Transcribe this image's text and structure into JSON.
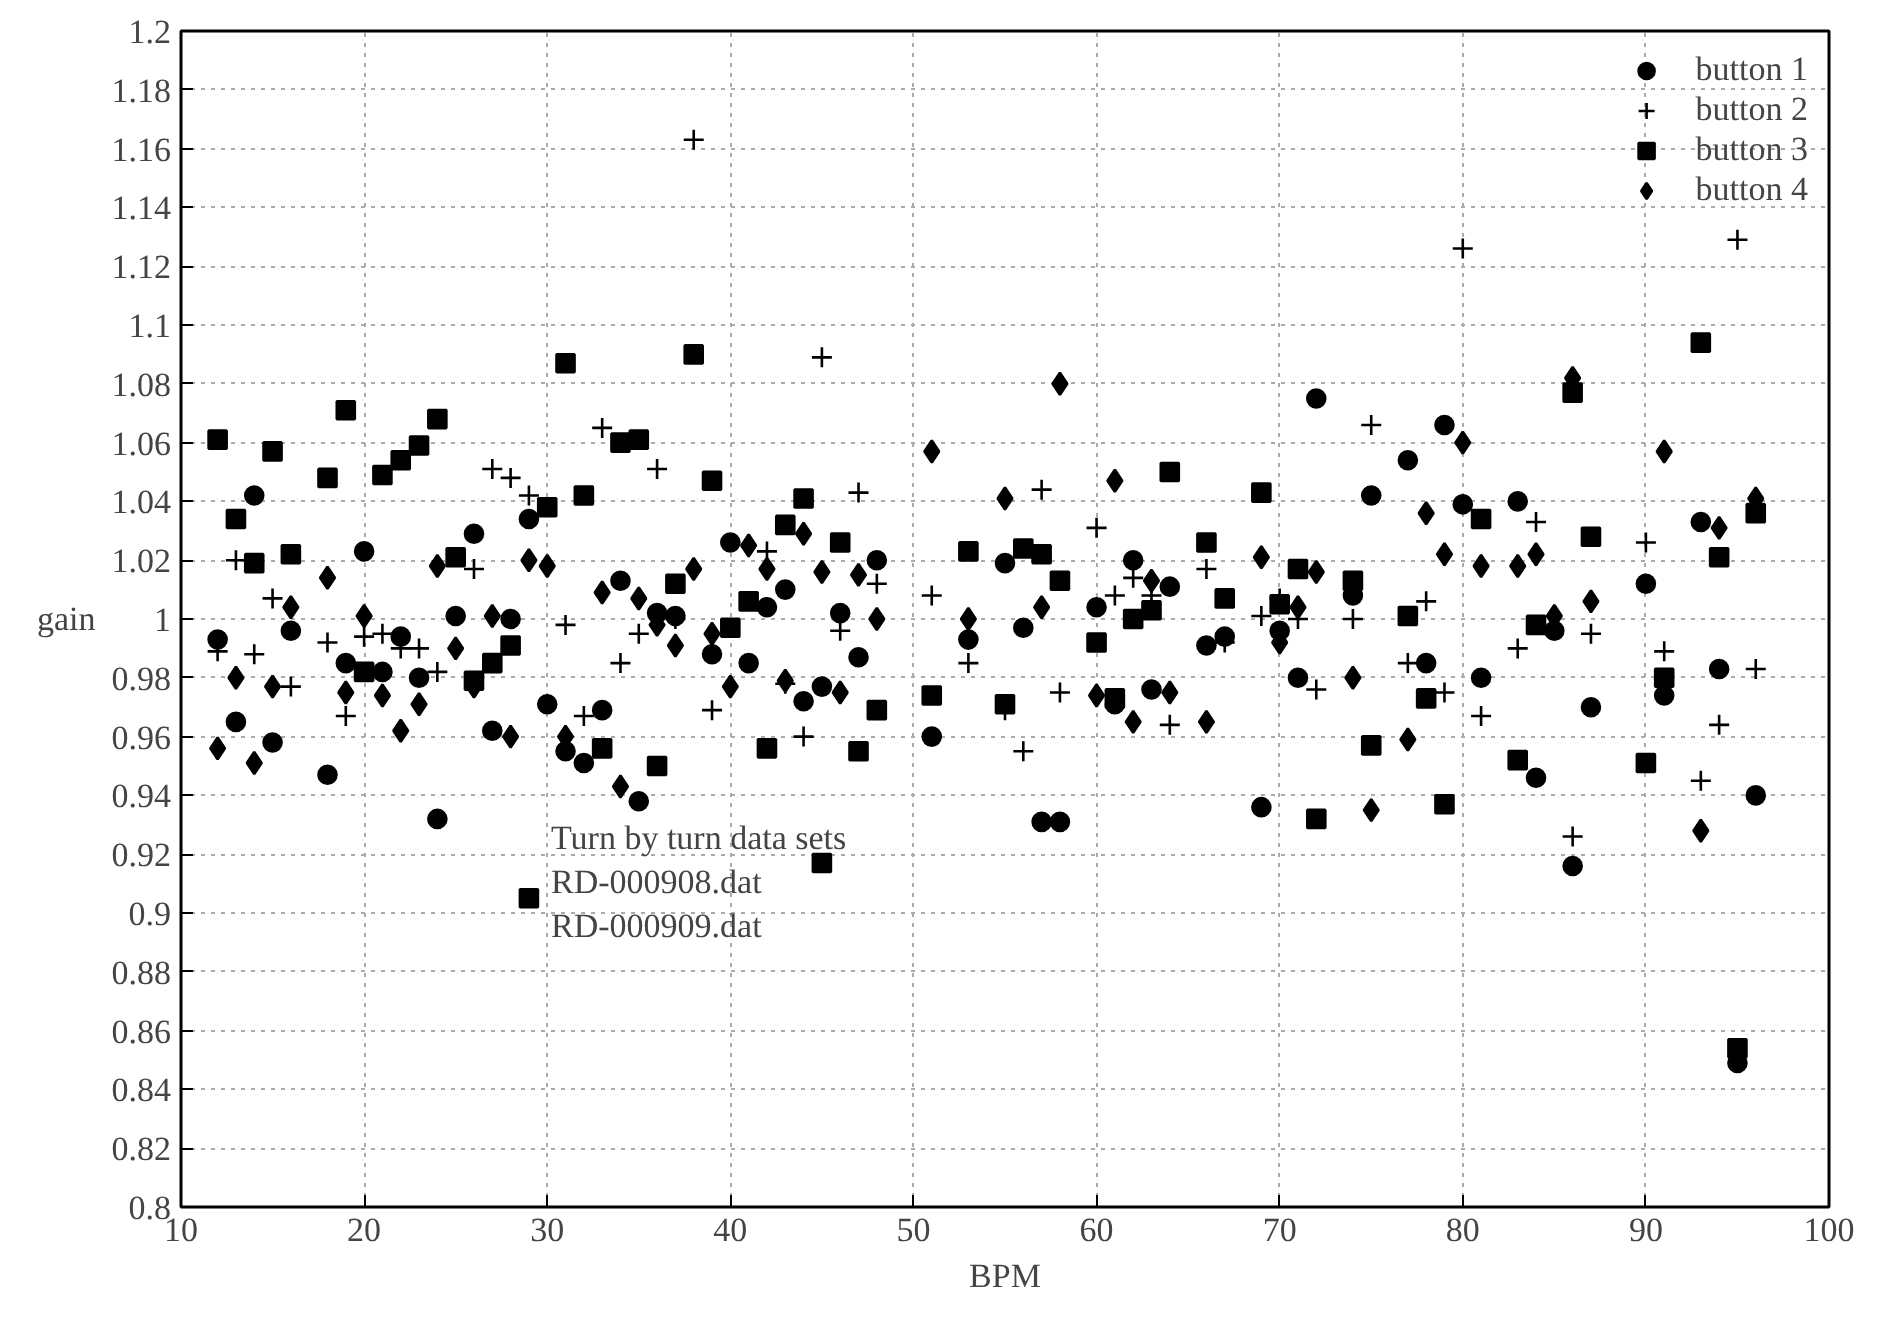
{
  "chart_data": {
    "type": "scatter",
    "xlabel": "BPM",
    "ylabel": "gain",
    "xlim": [
      10,
      100
    ],
    "ylim": [
      0.8,
      1.2
    ],
    "xticks": [
      10,
      20,
      30,
      40,
      50,
      60,
      70,
      80,
      90,
      100
    ],
    "yticks": [
      0.8,
      0.82,
      0.84,
      0.86,
      0.88,
      0.9,
      0.92,
      0.94,
      0.96,
      0.98,
      1,
      1.02,
      1.04,
      1.06,
      1.08,
      1.1,
      1.12,
      1.14,
      1.16,
      1.18,
      1.2
    ],
    "grid": true,
    "legend": "top right",
    "annotations": [
      "Turn by turn data sets",
      "RD-000908.dat",
      "RD-000909.dat"
    ],
    "series": [
      {
        "name": "button 1",
        "color": "#000000",
        "marker": "circle",
        "x": [
          12,
          13,
          14,
          15,
          16,
          18,
          19,
          20,
          21,
          22,
          23,
          24,
          25,
          26,
          27,
          28,
          29,
          30,
          31,
          32,
          33,
          34,
          35,
          36,
          37,
          39,
          40,
          41,
          42,
          43,
          44,
          45,
          46,
          47,
          48,
          51,
          53,
          55,
          56,
          57,
          58,
          60,
          61,
          62,
          63,
          64,
          66,
          67,
          69,
          70,
          71,
          72,
          74,
          75,
          77,
          78,
          79,
          80,
          81,
          83,
          84,
          85,
          86,
          87,
          90,
          91,
          93,
          94,
          95,
          96
        ],
        "values": [
          0.993,
          0.965,
          1.042,
          0.958,
          0.996,
          0.947,
          0.985,
          1.023,
          0.982,
          0.994,
          0.98,
          0.932,
          1.001,
          1.029,
          0.962,
          1.0,
          1.034,
          0.971,
          0.955,
          0.951,
          0.969,
          1.013,
          0.938,
          1.002,
          1.001,
          0.988,
          1.026,
          0.985,
          1.004,
          1.01,
          0.972,
          0.977,
          1.002,
          0.987,
          1.02,
          0.96,
          0.993,
          1.019,
          0.997,
          0.931,
          0.931,
          1.004,
          0.971,
          1.02,
          0.976,
          1.011,
          0.991,
          0.994,
          0.936,
          0.996,
          0.98,
          1.075,
          1.008,
          1.042,
          1.054,
          0.985,
          1.066,
          1.039,
          0.98,
          1.04,
          0.946,
          0.996,
          0.916,
          0.97,
          1.012,
          0.974,
          1.033,
          0.983,
          0.849,
          0.94
        ]
      },
      {
        "name": "button 2",
        "color": "#000000",
        "marker": "cross",
        "x": [
          12,
          13,
          14,
          15,
          16,
          18,
          19,
          20,
          21,
          22,
          23,
          24,
          26,
          27,
          28,
          29,
          31,
          32,
          33,
          34,
          35,
          36,
          37,
          38,
          39,
          42,
          43,
          44,
          45,
          46,
          47,
          48,
          51,
          53,
          55,
          56,
          57,
          58,
          60,
          61,
          62,
          63,
          64,
          66,
          67,
          69,
          70,
          71,
          72,
          74,
          75,
          77,
          78,
          79,
          80,
          81,
          83,
          84,
          86,
          87,
          90,
          91,
          93,
          94,
          95,
          96
        ],
        "values": [
          0.989,
          1.02,
          0.988,
          1.007,
          0.977,
          0.992,
          0.967,
          0.994,
          0.995,
          0.99,
          0.99,
          0.982,
          1.017,
          1.051,
          1.048,
          1.042,
          0.998,
          0.967,
          1.065,
          0.985,
          0.995,
          1.051,
          1.0,
          1.163,
          0.969,
          1.023,
          0.978,
          0.96,
          1.089,
          0.996,
          1.043,
          1.012,
          1.008,
          0.985,
          0.969,
          0.955,
          1.044,
          0.975,
          1.031,
          1.008,
          1.014,
          1.008,
          0.964,
          1.017,
          0.992,
          1.001,
          1.007,
          1.0,
          0.976,
          1.0,
          1.066,
          0.985,
          1.006,
          0.975,
          1.126,
          0.967,
          0.99,
          1.033,
          0.926,
          0.995,
          1.026,
          0.989,
          0.945,
          0.964,
          1.129,
          0.983
        ]
      },
      {
        "name": "button 3",
        "color": "#000000",
        "marker": "square",
        "x": [
          12,
          13,
          14,
          15,
          16,
          18,
          19,
          20,
          21,
          22,
          23,
          24,
          25,
          26,
          27,
          28,
          29,
          30,
          31,
          32,
          33,
          34,
          35,
          36,
          37,
          38,
          39,
          40,
          41,
          42,
          43,
          44,
          45,
          46,
          47,
          48,
          51,
          53,
          55,
          56,
          57,
          58,
          60,
          61,
          62,
          63,
          64,
          66,
          67,
          69,
          70,
          71,
          72,
          74,
          75,
          77,
          78,
          79,
          81,
          83,
          84,
          86,
          87,
          90,
          91,
          93,
          94,
          95,
          96
        ],
        "values": [
          1.061,
          1.034,
          1.019,
          1.057,
          1.022,
          1.048,
          1.071,
          0.982,
          1.049,
          1.054,
          1.059,
          1.068,
          1.021,
          0.979,
          0.985,
          0.991,
          0.905,
          1.038,
          1.087,
          1.042,
          0.956,
          1.06,
          1.061,
          0.95,
          1.012,
          1.09,
          1.047,
          0.997,
          1.006,
          0.956,
          1.032,
          1.041,
          0.917,
          1.026,
          0.955,
          0.969,
          0.974,
          1.023,
          0.971,
          1.024,
          1.022,
          1.013,
          0.992,
          0.973,
          1.0,
          1.003,
          1.05,
          1.026,
          1.007,
          1.043,
          1.005,
          1.017,
          0.932,
          1.013,
          0.957,
          1.001,
          0.973,
          0.937,
          1.034,
          0.952,
          0.998,
          1.077,
          1.028,
          0.951,
          0.98,
          1.094,
          1.021,
          0.854,
          1.036
        ]
      },
      {
        "name": "button 4",
        "color": "#000000",
        "marker": "diamond",
        "x": [
          12,
          13,
          14,
          15,
          16,
          18,
          19,
          20,
          21,
          22,
          23,
          24,
          25,
          26,
          27,
          28,
          29,
          30,
          31,
          33,
          34,
          35,
          36,
          37,
          38,
          39,
          40,
          41,
          42,
          43,
          44,
          45,
          46,
          47,
          48,
          51,
          53,
          55,
          57,
          58,
          60,
          61,
          62,
          63,
          64,
          66,
          69,
          70,
          71,
          72,
          74,
          75,
          77,
          78,
          79,
          80,
          81,
          83,
          84,
          85,
          86,
          87,
          91,
          93,
          94,
          96
        ],
        "values": [
          0.956,
          0.98,
          0.951,
          0.977,
          1.004,
          1.014,
          0.975,
          1.001,
          0.974,
          0.962,
          0.971,
          1.018,
          0.99,
          0.977,
          1.001,
          0.96,
          1.02,
          1.018,
          0.96,
          1.009,
          0.943,
          1.007,
          0.998,
          0.991,
          1.017,
          0.995,
          0.977,
          1.025,
          1.017,
          0.979,
          1.029,
          1.016,
          0.975,
          1.015,
          1.0,
          1.057,
          1.0,
          1.041,
          1.004,
          1.08,
          0.974,
          1.047,
          0.965,
          1.013,
          0.975,
          0.965,
          1.021,
          0.992,
          1.004,
          1.016,
          0.98,
          0.935,
          0.959,
          1.036,
          1.022,
          1.06,
          1.018,
          1.018,
          1.022,
          1.001,
          1.082,
          1.006,
          1.057,
          0.928,
          1.031,
          1.041
        ]
      }
    ]
  }
}
